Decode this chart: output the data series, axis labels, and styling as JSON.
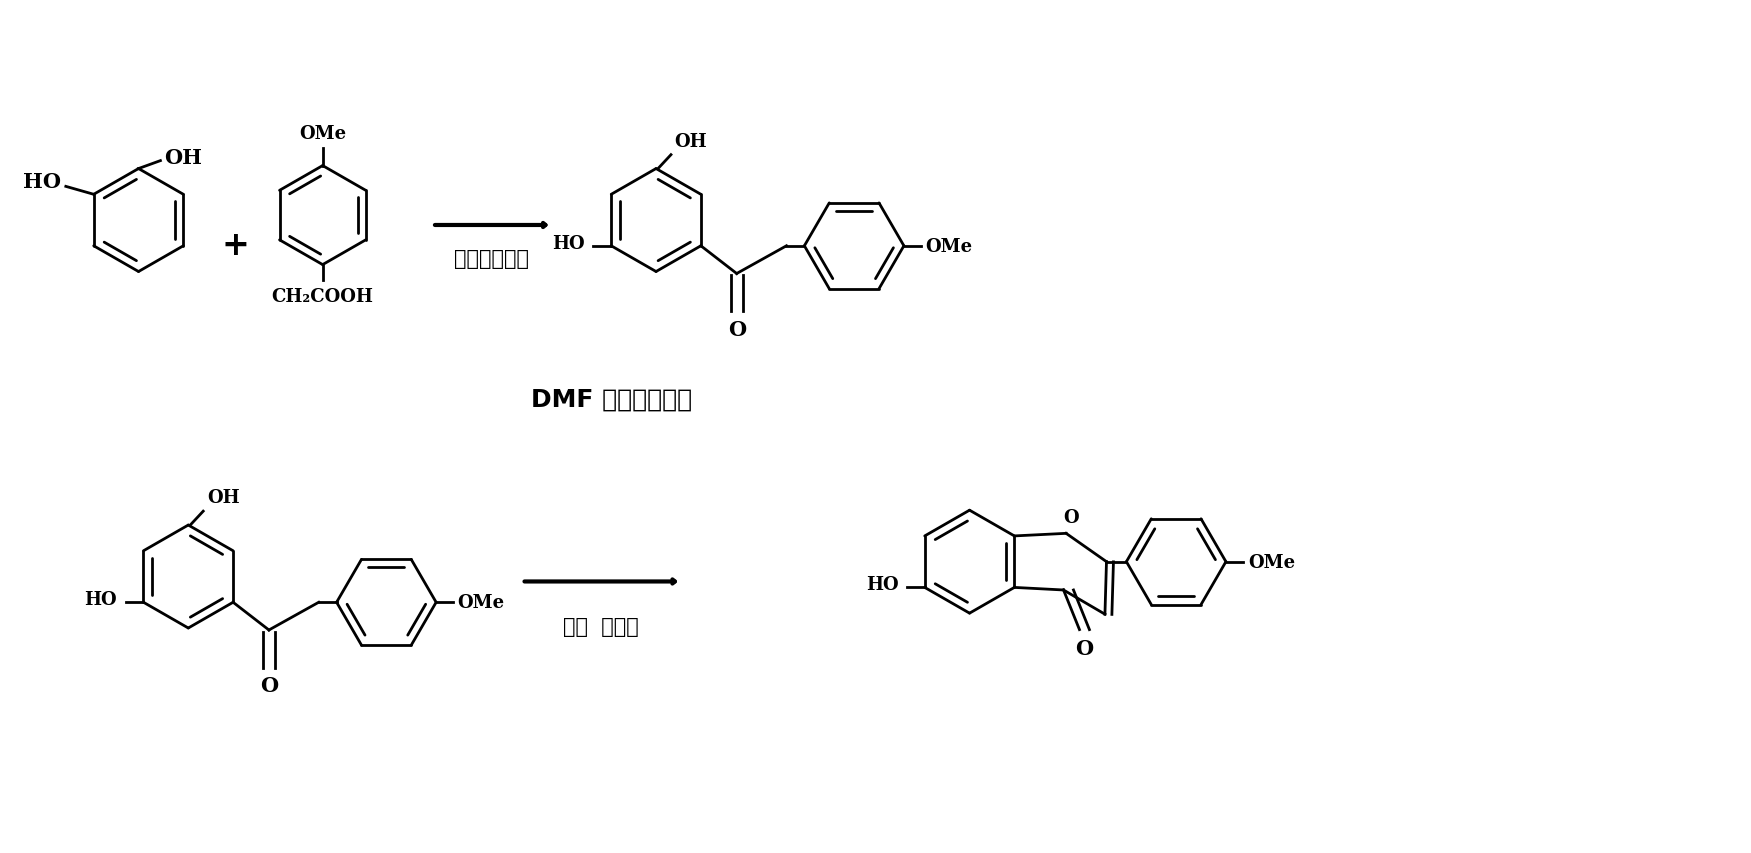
{
  "background": "#ffffff",
  "lc": "#000000",
  "lw": 2.0,
  "fs_label": 13,
  "fs_text": 15,
  "fs_big": 18,
  "step1_reagent": "三氟化硟乙醚",
  "step2_reagent1": "DMF 原甲酸三乙酯",
  "step2_reagent2": "咀啊  冰醚酸"
}
